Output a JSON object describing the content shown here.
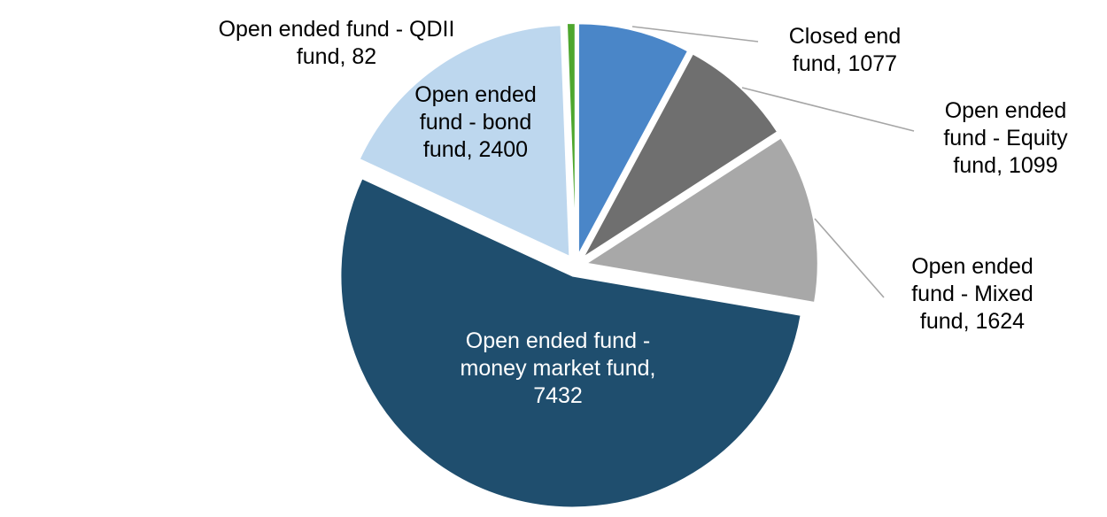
{
  "chart_data": {
    "type": "pie",
    "title": "",
    "legend": "none",
    "start_angle": 0,
    "direction": "clockwise",
    "total": 13714,
    "categories": [
      "Closed end fund",
      "Open ended fund - Equity fund",
      "Open ended fund - Mixed fund",
      "Open ended fund - money market fund",
      "Open ended fund - bond fund",
      "Open ended fund - QDII fund"
    ],
    "values": [
      1077,
      1099,
      1624,
      7432,
      2400,
      82
    ],
    "colors": [
      "#4A86C8",
      "#6F6F6F",
      "#A8A8A8",
      "#1F4E6E",
      "#BDD7EE",
      "#4EA72E"
    ],
    "leader_line_color": "#A6A6A6",
    "labels": [
      {
        "lines": [
          "Closed end",
          "fund, 1077"
        ]
      },
      {
        "lines": [
          "Open ended",
          "fund - Equity",
          "fund, 1099"
        ]
      },
      {
        "lines": [
          "Open ended",
          "fund - Mixed",
          "fund, 1624"
        ]
      },
      {
        "lines": [
          "Open ended fund -",
          "money market fund,",
          "7432"
        ]
      },
      {
        "lines": [
          "Open ended",
          "fund - bond",
          "fund, 2400"
        ]
      },
      {
        "lines": [
          "Open ended fund - QDII",
          "fund, 82"
        ]
      }
    ]
  }
}
